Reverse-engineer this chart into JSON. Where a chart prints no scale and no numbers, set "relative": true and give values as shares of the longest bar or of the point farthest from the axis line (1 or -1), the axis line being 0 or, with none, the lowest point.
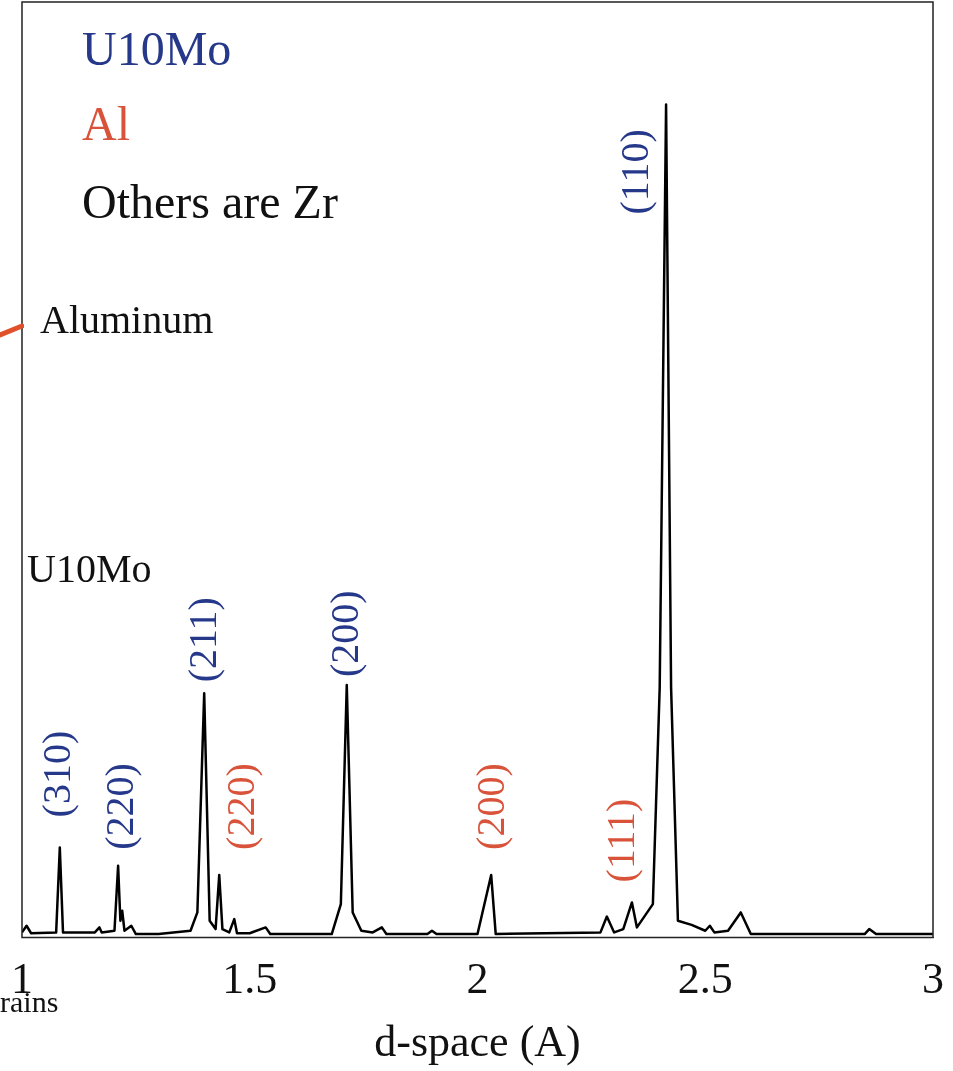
{
  "chart_data": {
    "type": "line",
    "relative": true,
    "xlabel": "d-space (A)",
    "xlim": [
      1,
      3
    ],
    "xticks": [
      1,
      1.5,
      2,
      2.5,
      3
    ],
    "grid": false,
    "legend": false,
    "marker": "none",
    "line_style": "solid",
    "series": [
      {
        "color": "#000000",
        "x": [
          1.0,
          1.01,
          1.02,
          1.075,
          1.083,
          1.09,
          1.16,
          1.17,
          1.175,
          1.203,
          1.211,
          1.216,
          1.22,
          1.225,
          1.24,
          1.25,
          1.3,
          1.37,
          1.385,
          1.4,
          1.412,
          1.425,
          1.433,
          1.44,
          1.455,
          1.466,
          1.472,
          1.5,
          1.535,
          1.545,
          1.68,
          1.7,
          1.713,
          1.726,
          1.745,
          1.77,
          1.79,
          1.8,
          1.89,
          1.9,
          1.91,
          2.0,
          2.03,
          2.04,
          2.27,
          2.284,
          2.3,
          2.32,
          2.339,
          2.35,
          2.385,
          2.4,
          2.414,
          2.425,
          2.44,
          2.47,
          2.5,
          2.51,
          2.52,
          2.55,
          2.578,
          2.6,
          2.85,
          2.86,
          2.875,
          3.0
        ],
        "values": [
          0.006,
          0.014,
          0.005,
          0.006,
          0.108,
          0.006,
          0.006,
          0.012,
          0.006,
          0.008,
          0.086,
          0.02,
          0.032,
          0.008,
          0.014,
          0.004,
          0.004,
          0.008,
          0.03,
          0.293,
          0.02,
          0.01,
          0.075,
          0.01,
          0.006,
          0.022,
          0.005,
          0.005,
          0.012,
          0.004,
          0.004,
          0.04,
          0.303,
          0.03,
          0.008,
          0.006,
          0.012,
          0.004,
          0.004,
          0.008,
          0.004,
          0.004,
          0.075,
          0.004,
          0.006,
          0.025,
          0.006,
          0.01,
          0.042,
          0.012,
          0.04,
          0.3,
          1,
          0.3,
          0.02,
          0.015,
          0.008,
          0.014,
          0.006,
          0.008,
          0.03,
          0.004,
          0.004,
          0.01,
          0.004,
          0.004
        ]
      }
    ],
    "annotations": [
      "U10Mo",
      "Al",
      "Others are Zr",
      "Aluminum",
      "U10Mo",
      "rains",
      {
        "text": "(310)",
        "x": 1.083,
        "y": 0.108
      },
      {
        "text": "(220)",
        "x": 1.211,
        "y": 0.086
      },
      {
        "text": "(211)",
        "x": 1.4,
        "y": 0.293
      },
      {
        "text": "(220)",
        "x": 1.433,
        "y": 0.075
      },
      {
        "text": "(200)",
        "x": 1.713,
        "y": 0.303
      },
      {
        "text": "(200)",
        "x": 2.03,
        "y": 0.075
      },
      {
        "text": "(111)",
        "x": 2.339,
        "y": 0.042
      },
      {
        "text": "(110)",
        "x": 2.414,
        "y": 1
      }
    ]
  }
}
